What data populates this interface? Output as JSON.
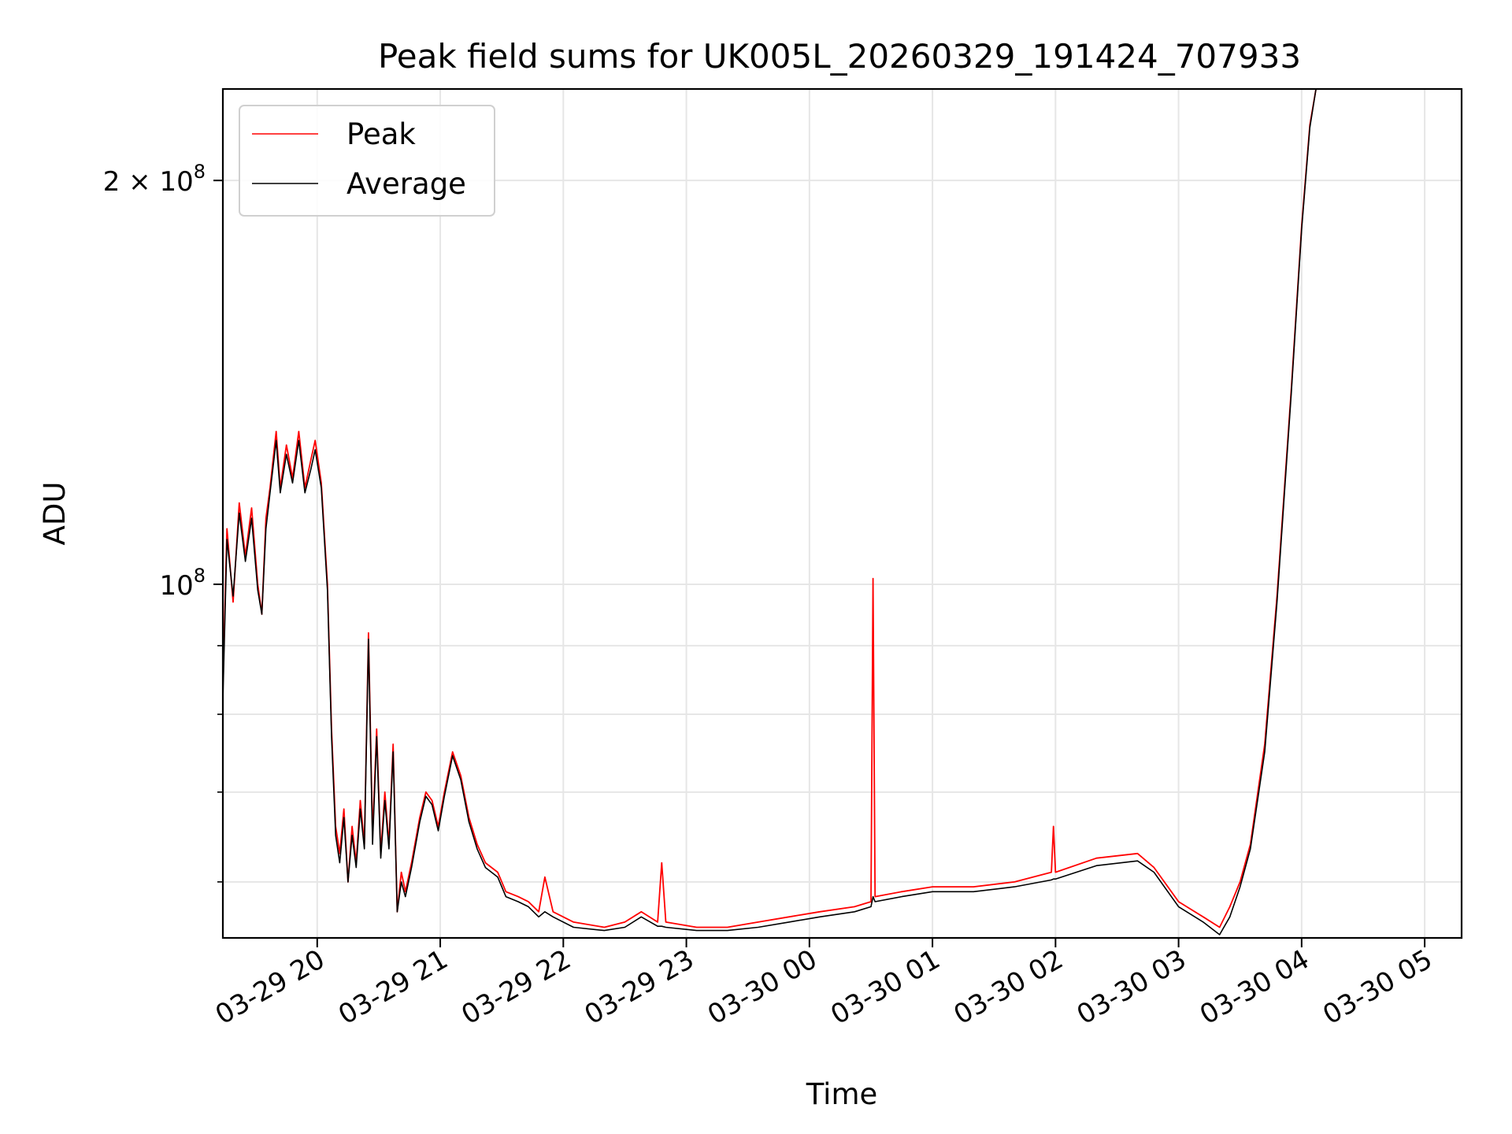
{
  "chart_data": {
    "type": "line",
    "title": "Peak field sums for UK005L_20260329_191424_707933",
    "xlabel": "Time",
    "ylabel": "ADU",
    "yscale": "log",
    "xlim": [
      "2026-03-29 19:14",
      "2026-03-30 05:18"
    ],
    "ylim": [
      54500000,
      234000000
    ],
    "grid": true,
    "legend_position": "top-left",
    "x_ticks": [
      "03-29 20",
      "03-29 21",
      "03-29 22",
      "03-29 23",
      "03-30 00",
      "03-30 01",
      "03-30 02",
      "03-30 03",
      "03-30 04",
      "03-30 05"
    ],
    "x_tick_times": [
      "2026-03-29 20:00",
      "2026-03-29 21:00",
      "2026-03-29 22:00",
      "2026-03-29 23:00",
      "2026-03-30 00:00",
      "2026-03-30 01:00",
      "2026-03-30 02:00",
      "2026-03-30 03:00",
      "2026-03-30 04:00",
      "2026-03-30 05:00"
    ],
    "y_major_ticks": [
      {
        "value": 100000000,
        "mantissa": "",
        "exponent": "8"
      },
      {
        "value": 200000000,
        "mantissa": "2",
        "exponent": "8"
      }
    ],
    "y_minor_ticks": [
      60000000,
      70000000,
      80000000,
      90000000
    ],
    "series": [
      {
        "name": "Peak",
        "color": "#ff0000",
        "points": [
          [
            "2026-03-29 19:14",
            84000000
          ],
          [
            "2026-03-29 19:16",
            110000000
          ],
          [
            "2026-03-29 19:19",
            97000000
          ],
          [
            "2026-03-29 19:22",
            115000000
          ],
          [
            "2026-03-29 19:25",
            105000000
          ],
          [
            "2026-03-29 19:28",
            114000000
          ],
          [
            "2026-03-29 19:31",
            100000000
          ],
          [
            "2026-03-29 19:33",
            95000000
          ],
          [
            "2026-03-29 19:35",
            112000000
          ],
          [
            "2026-03-29 19:37",
            118000000
          ],
          [
            "2026-03-29 19:40",
            130000000
          ],
          [
            "2026-03-29 19:42",
            118000000
          ],
          [
            "2026-03-29 19:45",
            127000000
          ],
          [
            "2026-03-29 19:48",
            120000000
          ],
          [
            "2026-03-29 19:51",
            130000000
          ],
          [
            "2026-03-29 19:54",
            118000000
          ],
          [
            "2026-03-29 19:57",
            124000000
          ],
          [
            "2026-03-29 19:59",
            128000000
          ],
          [
            "2026-03-29 20:02",
            119000000
          ],
          [
            "2026-03-29 20:05",
            100000000
          ],
          [
            "2026-03-29 20:07",
            78000000
          ],
          [
            "2026-03-29 20:09",
            66000000
          ],
          [
            "2026-03-29 20:11",
            63000000
          ],
          [
            "2026-03-29 20:13",
            68000000
          ],
          [
            "2026-03-29 20:15",
            60000000
          ],
          [
            "2026-03-29 20:17",
            66000000
          ],
          [
            "2026-03-29 20:19",
            62000000
          ],
          [
            "2026-03-29 20:21",
            69000000
          ],
          [
            "2026-03-29 20:23",
            64000000
          ],
          [
            "2026-03-29 20:25",
            92000000
          ],
          [
            "2026-03-29 20:27",
            65000000
          ],
          [
            "2026-03-29 20:29",
            78000000
          ],
          [
            "2026-03-29 20:31",
            63000000
          ],
          [
            "2026-03-29 20:33",
            70000000
          ],
          [
            "2026-03-29 20:35",
            64000000
          ],
          [
            "2026-03-29 20:37",
            76000000
          ],
          [
            "2026-03-29 20:39",
            57000000
          ],
          [
            "2026-03-29 20:41",
            61000000
          ],
          [
            "2026-03-29 20:43",
            59000000
          ],
          [
            "2026-03-29 20:46",
            62000000
          ],
          [
            "2026-03-29 20:50",
            67000000
          ],
          [
            "2026-03-29 20:53",
            70000000
          ],
          [
            "2026-03-29 20:56",
            69000000
          ],
          [
            "2026-03-29 20:59",
            66000000
          ],
          [
            "2026-03-29 21:02",
            70000000
          ],
          [
            "2026-03-29 21:06",
            75000000
          ],
          [
            "2026-03-29 21:10",
            72000000
          ],
          [
            "2026-03-29 21:14",
            67000000
          ],
          [
            "2026-03-29 21:18",
            64000000
          ],
          [
            "2026-03-29 21:22",
            62000000
          ],
          [
            "2026-03-29 21:28",
            61000000
          ],
          [
            "2026-03-29 21:32",
            59000000
          ],
          [
            "2026-03-29 21:38",
            58500000
          ],
          [
            "2026-03-29 21:43",
            58000000
          ],
          [
            "2026-03-29 21:48",
            57000000
          ],
          [
            "2026-03-29 21:51",
            60500000
          ],
          [
            "2026-03-29 21:55",
            57000000
          ],
          [
            "2026-03-29 22:05",
            56000000
          ],
          [
            "2026-03-29 22:20",
            55500000
          ],
          [
            "2026-03-29 22:30",
            56000000
          ],
          [
            "2026-03-29 22:38",
            57000000
          ],
          [
            "2026-03-29 22:46",
            56000000
          ],
          [
            "2026-03-29 22:48",
            62000000
          ],
          [
            "2026-03-29 22:50",
            56000000
          ],
          [
            "2026-03-29 23:05",
            55500000
          ],
          [
            "2026-03-29 23:20",
            55500000
          ],
          [
            "2026-03-29 23:35",
            56000000
          ],
          [
            "2026-03-29 23:50",
            56500000
          ],
          [
            "2026-03-30 00:05",
            57000000
          ],
          [
            "2026-03-30 00:22",
            57500000
          ],
          [
            "2026-03-30 00:30",
            58000000
          ],
          [
            "2026-03-30 00:31",
            101000000
          ],
          [
            "2026-03-30 00:32",
            58500000
          ],
          [
            "2026-03-30 00:45",
            59000000
          ],
          [
            "2026-03-30 01:00",
            59500000
          ],
          [
            "2026-03-30 01:20",
            59500000
          ],
          [
            "2026-03-30 01:40",
            60000000
          ],
          [
            "2026-03-30 01:58",
            61000000
          ],
          [
            "2026-03-30 01:59",
            66000000
          ],
          [
            "2026-03-30 02:00",
            61000000
          ],
          [
            "2026-03-30 02:20",
            62500000
          ],
          [
            "2026-03-30 02:40",
            63000000
          ],
          [
            "2026-03-30 02:48",
            61500000
          ],
          [
            "2026-03-30 03:00",
            58000000
          ],
          [
            "2026-03-30 03:12",
            56500000
          ],
          [
            "2026-03-30 03:20",
            55500000
          ],
          [
            "2026-03-30 03:25",
            57500000
          ],
          [
            "2026-03-30 03:30",
            60000000
          ],
          [
            "2026-03-30 03:35",
            64000000
          ],
          [
            "2026-03-30 03:42",
            76000000
          ],
          [
            "2026-03-30 03:48",
            98000000
          ],
          [
            "2026-03-30 03:55",
            140000000
          ],
          [
            "2026-03-30 04:00",
            185000000
          ],
          [
            "2026-03-30 04:04",
            220000000
          ],
          [
            "2026-03-30 04:07",
            234000000
          ]
        ]
      },
      {
        "name": "Average",
        "color": "#000000",
        "points": [
          [
            "2026-03-29 19:14",
            82000000
          ],
          [
            "2026-03-29 19:16",
            108000000
          ],
          [
            "2026-03-29 19:19",
            98000000
          ],
          [
            "2026-03-29 19:22",
            113000000
          ],
          [
            "2026-03-29 19:25",
            104000000
          ],
          [
            "2026-03-29 19:28",
            112000000
          ],
          [
            "2026-03-29 19:31",
            99000000
          ],
          [
            "2026-03-29 19:33",
            95000000
          ],
          [
            "2026-03-29 19:35",
            110000000
          ],
          [
            "2026-03-29 19:37",
            117000000
          ],
          [
            "2026-03-29 19:40",
            128000000
          ],
          [
            "2026-03-29 19:42",
            117000000
          ],
          [
            "2026-03-29 19:45",
            125000000
          ],
          [
            "2026-03-29 19:48",
            119000000
          ],
          [
            "2026-03-29 19:51",
            128000000
          ],
          [
            "2026-03-29 19:54",
            117000000
          ],
          [
            "2026-03-29 19:57",
            122000000
          ],
          [
            "2026-03-29 19:59",
            126000000
          ],
          [
            "2026-03-29 20:02",
            118000000
          ],
          [
            "2026-03-29 20:05",
            99000000
          ],
          [
            "2026-03-29 20:07",
            77000000
          ],
          [
            "2026-03-29 20:09",
            65000000
          ],
          [
            "2026-03-29 20:11",
            62000000
          ],
          [
            "2026-03-29 20:13",
            67000000
          ],
          [
            "2026-03-29 20:15",
            60000000
          ],
          [
            "2026-03-29 20:17",
            65000000
          ],
          [
            "2026-03-29 20:19",
            61500000
          ],
          [
            "2026-03-29 20:21",
            68000000
          ],
          [
            "2026-03-29 20:23",
            63500000
          ],
          [
            "2026-03-29 20:25",
            91000000
          ],
          [
            "2026-03-29 20:27",
            64000000
          ],
          [
            "2026-03-29 20:29",
            77000000
          ],
          [
            "2026-03-29 20:31",
            62500000
          ],
          [
            "2026-03-29 20:33",
            69000000
          ],
          [
            "2026-03-29 20:35",
            63500000
          ],
          [
            "2026-03-29 20:37",
            75000000
          ],
          [
            "2026-03-29 20:39",
            57000000
          ],
          [
            "2026-03-29 20:41",
            60000000
          ],
          [
            "2026-03-29 20:43",
            58500000
          ],
          [
            "2026-03-29 20:46",
            61500000
          ],
          [
            "2026-03-29 20:50",
            66500000
          ],
          [
            "2026-03-29 20:53",
            69500000
          ],
          [
            "2026-03-29 20:56",
            68500000
          ],
          [
            "2026-03-29 20:59",
            65500000
          ],
          [
            "2026-03-29 21:02",
            69500000
          ],
          [
            "2026-03-29 21:06",
            74500000
          ],
          [
            "2026-03-29 21:10",
            71500000
          ],
          [
            "2026-03-29 21:14",
            66500000
          ],
          [
            "2026-03-29 21:18",
            63500000
          ],
          [
            "2026-03-29 21:22",
            61500000
          ],
          [
            "2026-03-29 21:28",
            60500000
          ],
          [
            "2026-03-29 21:32",
            58500000
          ],
          [
            "2026-03-29 21:38",
            58000000
          ],
          [
            "2026-03-29 21:43",
            57500000
          ],
          [
            "2026-03-29 21:48",
            56500000
          ],
          [
            "2026-03-29 21:51",
            57000000
          ],
          [
            "2026-03-29 21:55",
            56500000
          ],
          [
            "2026-03-29 22:05",
            55500000
          ],
          [
            "2026-03-29 22:20",
            55200000
          ],
          [
            "2026-03-29 22:30",
            55500000
          ],
          [
            "2026-03-29 22:38",
            56500000
          ],
          [
            "2026-03-29 22:46",
            55600000
          ],
          [
            "2026-03-29 22:48",
            55600000
          ],
          [
            "2026-03-29 22:50",
            55500000
          ],
          [
            "2026-03-29 23:05",
            55200000
          ],
          [
            "2026-03-29 23:20",
            55200000
          ],
          [
            "2026-03-29 23:35",
            55500000
          ],
          [
            "2026-03-29 23:50",
            56000000
          ],
          [
            "2026-03-30 00:05",
            56500000
          ],
          [
            "2026-03-30 00:22",
            57000000
          ],
          [
            "2026-03-30 00:30",
            57500000
          ],
          [
            "2026-03-30 00:31",
            58500000
          ],
          [
            "2026-03-30 00:32",
            58000000
          ],
          [
            "2026-03-30 00:45",
            58500000
          ],
          [
            "2026-03-30 01:00",
            59000000
          ],
          [
            "2026-03-30 01:20",
            59000000
          ],
          [
            "2026-03-30 01:40",
            59500000
          ],
          [
            "2026-03-30 01:58",
            60200000
          ],
          [
            "2026-03-30 01:59",
            60300000
          ],
          [
            "2026-03-30 02:00",
            60300000
          ],
          [
            "2026-03-30 02:20",
            61700000
          ],
          [
            "2026-03-30 02:40",
            62200000
          ],
          [
            "2026-03-30 02:48",
            61000000
          ],
          [
            "2026-03-30 03:00",
            57500000
          ],
          [
            "2026-03-30 03:12",
            56000000
          ],
          [
            "2026-03-30 03:20",
            54800000
          ],
          [
            "2026-03-30 03:25",
            56500000
          ],
          [
            "2026-03-30 03:30",
            59500000
          ],
          [
            "2026-03-30 03:35",
            63500000
          ],
          [
            "2026-03-30 03:42",
            75000000
          ],
          [
            "2026-03-30 03:48",
            97000000
          ],
          [
            "2026-03-30 03:55",
            139000000
          ],
          [
            "2026-03-30 04:00",
            184000000
          ],
          [
            "2026-03-30 04:04",
            219000000
          ],
          [
            "2026-03-30 04:07",
            234000000
          ]
        ]
      }
    ]
  }
}
